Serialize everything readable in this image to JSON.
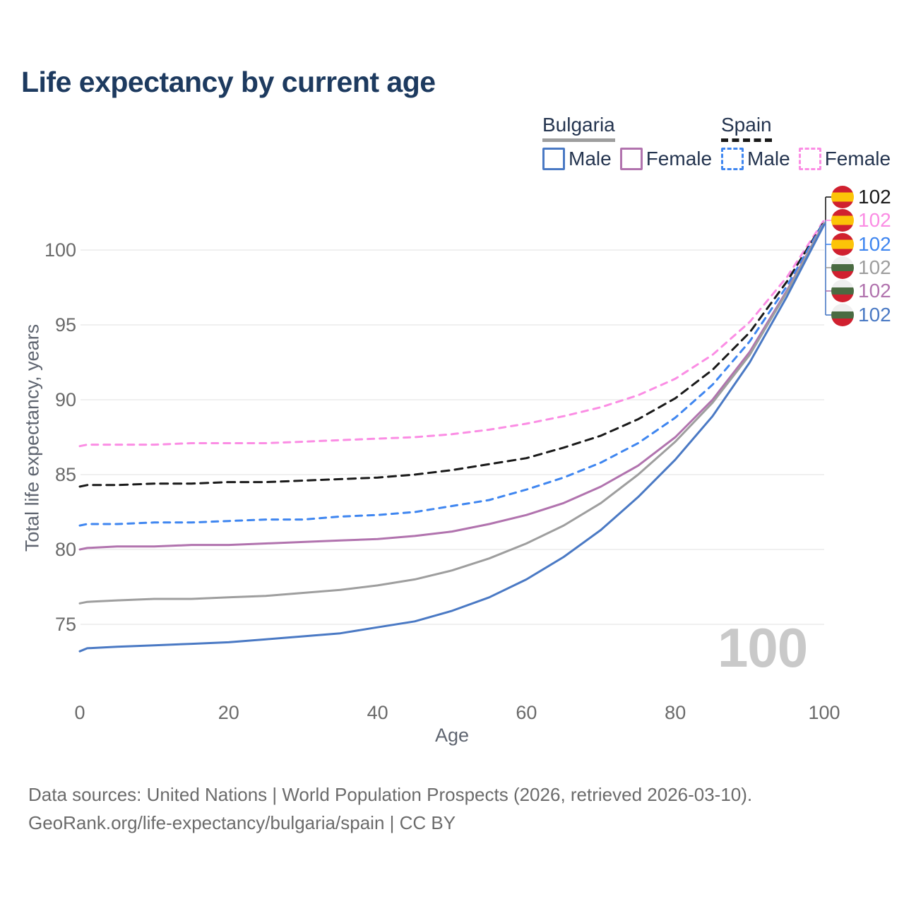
{
  "title": "Life expectancy by current age",
  "legend": {
    "groups": [
      {
        "name": "Bulgaria",
        "line_style": "solid",
        "line_color": "#9e9e9e",
        "items": [
          {
            "label": "Male",
            "color": "#4a79c4"
          },
          {
            "label": "Female",
            "color": "#b173ae"
          }
        ]
      },
      {
        "name": "Spain",
        "line_style": "dashed",
        "line_color": "#1a1a1a",
        "items": [
          {
            "label": "Male",
            "color": "#3f86f0"
          },
          {
            "label": "Female",
            "color": "#fb8de4"
          }
        ]
      }
    ]
  },
  "end_labels": [
    {
      "flag": "spain",
      "value": "102",
      "color": "#1a1a1a"
    },
    {
      "flag": "spain",
      "value": "102",
      "color": "#fb8de4"
    },
    {
      "flag": "spain",
      "value": "102",
      "color": "#3f86f0"
    },
    {
      "flag": "bulgaria",
      "value": "102",
      "color": "#9e9e9e"
    },
    {
      "flag": "bulgaria",
      "value": "102",
      "color": "#b173ae"
    },
    {
      "flag": "bulgaria",
      "value": "102",
      "color": "#4a79c4"
    }
  ],
  "watermark": "100",
  "footer": {
    "line1": "Data sources: United Nations | World Population Prospects (2026, retrieved 2026-03-10).",
    "line2": "GeoRank.org/life-expectancy/bulgaria/spain | CC BY"
  },
  "chart_data": {
    "type": "line",
    "title": "Life expectancy by current age",
    "xlabel": "Age",
    "ylabel": "Total life expectancy, years",
    "x_ticks": [
      0,
      20,
      40,
      60,
      80,
      100
    ],
    "y_ticks": [
      75,
      80,
      85,
      90,
      95,
      100
    ],
    "xlim": [
      0,
      100
    ],
    "ylim": [
      72.5,
      103
    ],
    "grid": "horizontal",
    "legend_position": "top-right",
    "x": [
      0,
      1,
      5,
      10,
      15,
      20,
      25,
      30,
      35,
      40,
      45,
      50,
      55,
      60,
      65,
      70,
      75,
      80,
      85,
      90,
      95,
      100
    ],
    "series": [
      {
        "name": "Spain Female",
        "country": "Spain",
        "sex": "Female",
        "color": "#fb8de4",
        "dashed": true,
        "end_value_label": "102",
        "values": [
          86.9,
          87.0,
          87.0,
          87.0,
          87.1,
          87.1,
          87.1,
          87.2,
          87.3,
          87.4,
          87.5,
          87.7,
          88.0,
          88.4,
          88.9,
          89.5,
          90.3,
          91.4,
          93.0,
          95.2,
          98.2,
          102.0
        ]
      },
      {
        "name": "Spain",
        "country": "Spain",
        "sex": "Both",
        "color": "#1a1a1a",
        "dashed": true,
        "end_value_label": "102",
        "values": [
          84.2,
          84.3,
          84.3,
          84.4,
          84.4,
          84.5,
          84.5,
          84.6,
          84.7,
          84.8,
          85.0,
          85.3,
          85.7,
          86.1,
          86.8,
          87.6,
          88.7,
          90.1,
          92.0,
          94.5,
          97.9,
          101.9
        ]
      },
      {
        "name": "Spain Male",
        "country": "Spain",
        "sex": "Male",
        "color": "#3f86f0",
        "dashed": true,
        "end_value_label": "102",
        "values": [
          81.6,
          81.7,
          81.7,
          81.8,
          81.8,
          81.9,
          82.0,
          82.0,
          82.2,
          82.3,
          82.5,
          82.9,
          83.3,
          84.0,
          84.8,
          85.8,
          87.1,
          88.8,
          91.0,
          93.9,
          97.6,
          101.9
        ]
      },
      {
        "name": "Bulgaria Female",
        "country": "Bulgaria",
        "sex": "Female",
        "color": "#b173ae",
        "dashed": false,
        "end_value_label": "102",
        "values": [
          80.0,
          80.1,
          80.2,
          80.2,
          80.3,
          80.3,
          80.4,
          80.5,
          80.6,
          80.7,
          80.9,
          81.2,
          81.7,
          82.3,
          83.1,
          84.2,
          85.6,
          87.5,
          90.0,
          93.2,
          97.3,
          101.8
        ]
      },
      {
        "name": "Bulgaria",
        "country": "Bulgaria",
        "sex": "Both",
        "color": "#9e9e9e",
        "dashed": false,
        "end_value_label": "102",
        "values": [
          76.4,
          76.5,
          76.6,
          76.7,
          76.7,
          76.8,
          76.9,
          77.1,
          77.3,
          77.6,
          78.0,
          78.6,
          79.4,
          80.4,
          81.6,
          83.1,
          85.0,
          87.2,
          89.8,
          93.0,
          97.2,
          101.8
        ]
      },
      {
        "name": "Bulgaria Male",
        "country": "Bulgaria",
        "sex": "Male",
        "color": "#4a79c4",
        "dashed": false,
        "end_value_label": "102",
        "values": [
          73.2,
          73.4,
          73.5,
          73.6,
          73.7,
          73.8,
          74.0,
          74.2,
          74.4,
          74.8,
          75.2,
          75.9,
          76.8,
          78.0,
          79.5,
          81.3,
          83.5,
          86.0,
          88.9,
          92.5,
          96.9,
          101.7
        ]
      }
    ]
  }
}
